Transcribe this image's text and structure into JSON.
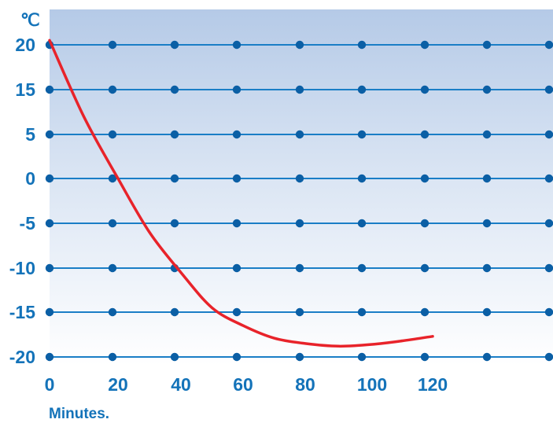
{
  "chart_data": {
    "type": "line",
    "title": "",
    "ylabel": "℃",
    "xlabel": "Minutes.",
    "x_ticks": [
      "0",
      "20",
      "40",
      "60",
      "80",
      "100",
      "120"
    ],
    "y_ticks": [
      "20",
      "15",
      "5",
      "0",
      "-5",
      "-10",
      "-15",
      "-20"
    ],
    "grid": true,
    "series": [
      {
        "color": "#e8232a",
        "x": [
          0,
          10,
          20,
          30,
          40,
          50,
          60,
          70,
          80,
          90,
          100,
          110,
          120
        ],
        "y": [
          20.5,
          9,
          0,
          -6,
          -10.5,
          -14.5,
          -16.5,
          -17.9,
          -18.5,
          -18.8,
          -18.6,
          -18.2,
          -17.7
        ]
      }
    ],
    "colors": {
      "text": "#1473b9",
      "grid_line": "#1a7ec6",
      "grid_dot": "#0b5fa5",
      "bg_top": "#b5cae7",
      "bg_bottom": "#ffffff"
    }
  }
}
